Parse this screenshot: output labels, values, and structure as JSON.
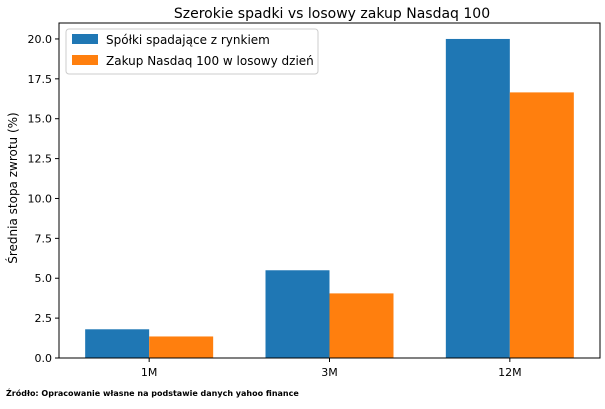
{
  "chart_data": {
    "type": "bar",
    "title": "Szerokie spadki vs losowy zakup Nasdaq 100",
    "xlabel": "",
    "ylabel": "Średnia stopa zwrotu (%)",
    "categories": [
      "1M",
      "3M",
      "12M"
    ],
    "series": [
      {
        "name": "Spółki spadające z rynkiem",
        "values": [
          1.8,
          5.5,
          20.0
        ],
        "color": "#1f77b4"
      },
      {
        "name": "Zakup Nasdaq 100 w losowy dzień",
        "values": [
          1.35,
          4.05,
          16.65
        ],
        "color": "#ff7f0e"
      }
    ],
    "ylim": [
      0,
      21.0
    ],
    "yticks": [
      "0.0",
      "2.5",
      "5.0",
      "7.5",
      "10.0",
      "12.5",
      "15.0",
      "17.5",
      "20.0"
    ],
    "grid": false,
    "legend_position": "top-left"
  },
  "source_note": "Źródło: Opracowanie własne na podstawie danych yahoo finance"
}
